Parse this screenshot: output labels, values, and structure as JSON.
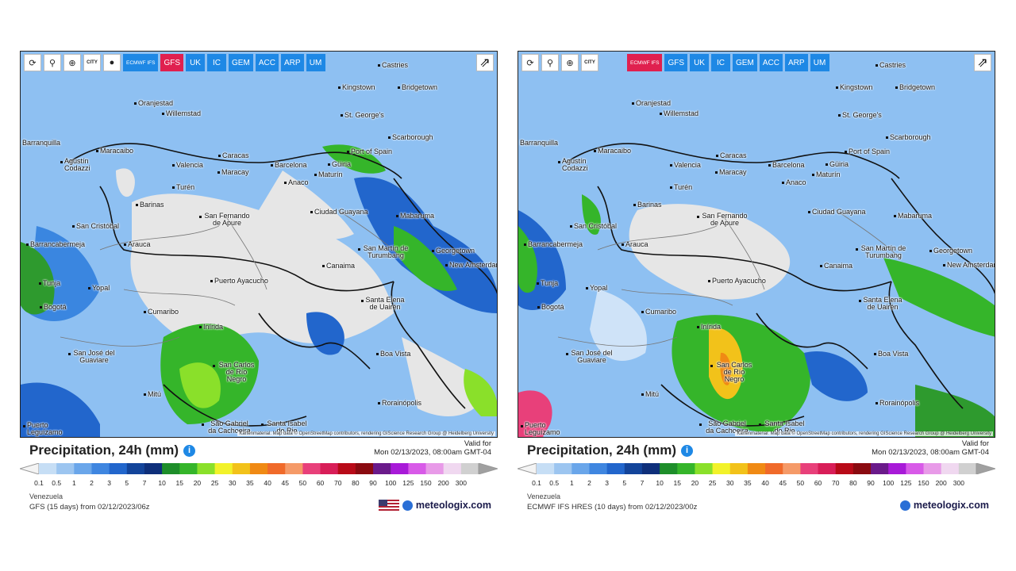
{
  "toolbar_left": {
    "tools": [
      "refresh-icon",
      "marker-icon",
      "zoom-icon",
      "city-toggle",
      "dot-icon"
    ],
    "city_label": "CITY",
    "models": [
      "ECMWF IFS",
      "GFS",
      "UK",
      "IC",
      "GEM",
      "ACC",
      "ARP",
      "UM"
    ],
    "active_model": "GFS"
  },
  "toolbar_right": {
    "city_label": "CITY",
    "models": [
      "ECMWF IFS",
      "GFS",
      "UK",
      "IC",
      "GEM",
      "ACC",
      "ARP",
      "UM"
    ],
    "active_model": "ECMWF IFS"
  },
  "cities": [
    "Castries",
    "Kingstown",
    "Bridgetown",
    "Oranjestad",
    "Willemstad",
    "St. George's",
    "Scarborough",
    "Port of Spain",
    "Maracaibo",
    "Caracas",
    "Valencia",
    "Maracay",
    "Barcelona",
    "Güiria",
    "Maturín",
    "Agustín Codazzi",
    "Turén",
    "Anaco",
    "Barranquilla",
    "Barinas",
    "San Cristóbal",
    "San Fernando de Apure",
    "Ciudad Guayana",
    "Mabaruma",
    "Barrancabermeja",
    "Arauca",
    "Georgetown",
    "San Martín de Turumbang",
    "New Amsterdam",
    "Canaima",
    "Tunja",
    "Yopal",
    "Puerto Ayacucho",
    "Bogotá",
    "Santa Elena de Uairén",
    "Cumaribo",
    "Inírida",
    "San José del Guaviare",
    "Boa Vista",
    "San Carlos de Río Negro",
    "Mitú",
    "Rorainópolis",
    "São Gabriel da Cachoeira",
    "Santa Isabel do Rio",
    "Puerto Leguízamo"
  ],
  "attribution": "Kartenmaterial: Map data © OpenStreetMap contributors, rendering GIScience Research Group @ Heidelberg University",
  "left_panel": {
    "title": "Precipitation, 24h (mm)",
    "valid_for": "Valid for",
    "valid_time": "Mon 02/13/2023, 08:00am GMT-04",
    "region": "Venezuela",
    "run": "GFS (15 days) from 02/12/2023/06z",
    "brand": "meteologix.com"
  },
  "right_panel": {
    "title": "Precipitation, 24h (mm)",
    "valid_for": "Valid for",
    "valid_time": "Mon 02/13/2023, 08:00am GMT-04",
    "region": "Venezuela",
    "run": "ECMWF IFS HRES (10 days) from 02/12/2023/00z",
    "brand": "meteologix.com"
  },
  "scale": {
    "ticks": [
      "0.1",
      "0.5",
      "1",
      "2",
      "3",
      "5",
      "7",
      "10",
      "15",
      "20",
      "25",
      "30",
      "35",
      "40",
      "45",
      "50",
      "60",
      "70",
      "80",
      "90",
      "100",
      "125",
      "150",
      "200",
      "300"
    ],
    "colors": [
      "#c6def5",
      "#9cc5f0",
      "#6aa6ea",
      "#3f86e0",
      "#2266cc",
      "#13449a",
      "#0e2f7a",
      "#1e8e2a",
      "#35b52a",
      "#8ae02a",
      "#f2f22a",
      "#f2c21a",
      "#f08a14",
      "#f06a2a",
      "#f59a68",
      "#e8407a",
      "#d81e58",
      "#b80a18",
      "#8a0a10",
      "#6a1a8a",
      "#a81ad8",
      "#d85ae8",
      "#e89ae8",
      "#f0d8f0",
      "#d0d0d0"
    ]
  }
}
